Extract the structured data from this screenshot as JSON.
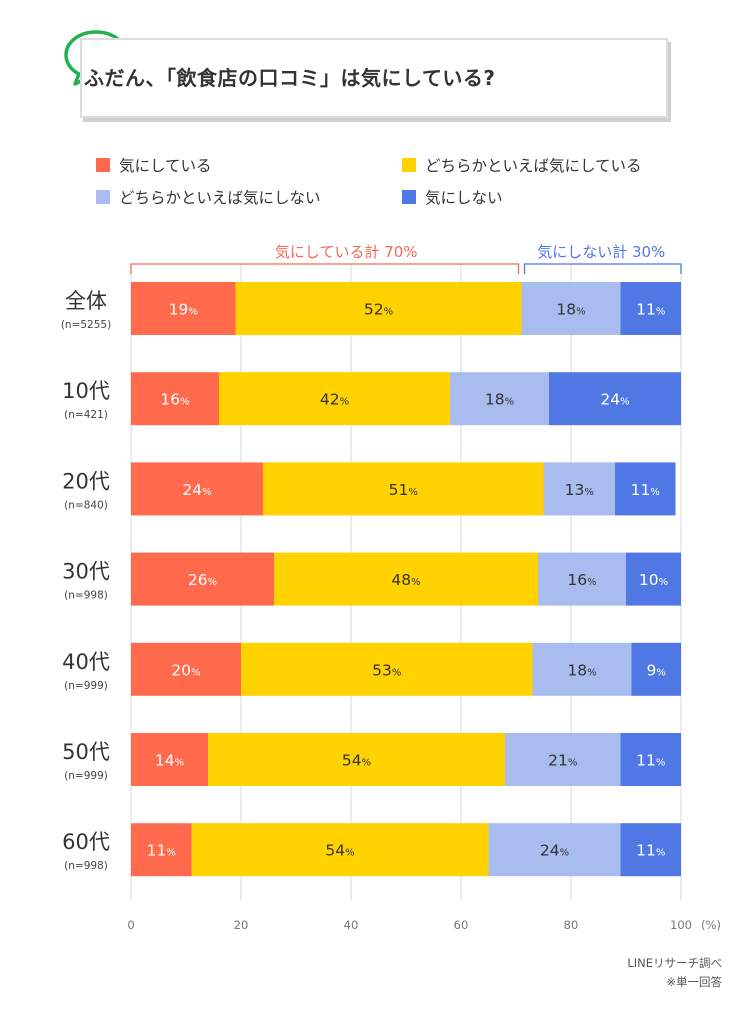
{
  "title": "ふだん、「飲食店の口コミ」は気にしている?",
  "legend": [
    {
      "label": "気にしている",
      "color": "#FF6A4D"
    },
    {
      "label": "どちらかといえば気にしている",
      "color": "#FFD200"
    },
    {
      "label": "どちらかといえば気にしない",
      "color": "#A9BCF0"
    },
    {
      "label": "気にしない",
      "color": "#4F78E5"
    }
  ],
  "groups": {
    "left_label": "気にしている計 70%",
    "left_color": "#F26A55",
    "right_label": "気にしない計 30%",
    "right_color": "#4F78E5"
  },
  "source": "LINEリサーチ調べ",
  "note": "※単一回答",
  "chart_data": {
    "type": "bar",
    "orientation": "horizontal",
    "stacked": true,
    "categories": [
      "全体",
      "10代",
      "20代",
      "30代",
      "40代",
      "50代",
      "60代"
    ],
    "sample_sizes": [
      "(n=5255)",
      "(n=421)",
      "(n=840)",
      "(n=998)",
      "(n=999)",
      "(n=999)",
      "(n=998)"
    ],
    "series": [
      {
        "name": "気にしている",
        "color": "#FF6A4D",
        "text_color": "#ffffff",
        "values": [
          19,
          16,
          24,
          26,
          20,
          14,
          11
        ]
      },
      {
        "name": "どちらかといえば気にしている",
        "color": "#FFD200",
        "text_color": "#333333",
        "values": [
          52,
          42,
          51,
          48,
          53,
          54,
          54
        ]
      },
      {
        "name": "どちらかといえば気にしない",
        "color": "#A9BCF0",
        "text_color": "#333333",
        "values": [
          18,
          18,
          13,
          16,
          18,
          21,
          24
        ]
      },
      {
        "name": "気にしない",
        "color": "#4F78E5",
        "text_color": "#ffffff",
        "values": [
          11,
          24,
          11,
          10,
          9,
          11,
          11
        ]
      }
    ],
    "xlim": [
      0,
      100
    ],
    "xticks": [
      0,
      20,
      40,
      60,
      80,
      100
    ],
    "xunit": "(%)",
    "value_suffix": "%",
    "grid": true
  }
}
